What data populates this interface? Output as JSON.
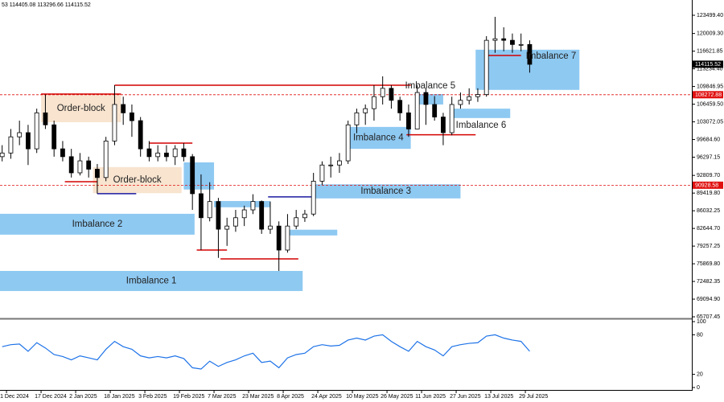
{
  "chart_data": [
    {
      "type": "candlestick",
      "info": "53 114405.08 113296.66 114115.52",
      "xlim": [
        "28 Nov 2024",
        "14 Oct 2025"
      ],
      "ylim": [
        65404,
        126427
      ],
      "yticks": [
        {
          "value": 123499.4,
          "label": "123499.40"
        },
        {
          "value": 120009.3,
          "label": "120009.30"
        },
        {
          "value": 116621.85,
          "label": "116621.85"
        },
        {
          "value": 113234.4,
          "label": "113234.40"
        },
        {
          "value": 109846.95,
          "label": "109846.95"
        },
        {
          "value": 106459.5,
          "label": "106459.50"
        },
        {
          "value": 103072.05,
          "label": "103072.05"
        },
        {
          "value": 99684.6,
          "label": "99684.60"
        },
        {
          "value": 96297.15,
          "label": "96297.15"
        },
        {
          "value": 92809.7,
          "label": "92809.70"
        },
        {
          "value": 89419.8,
          "label": "89419.80"
        },
        {
          "value": 86032.25,
          "label": "86032.25"
        },
        {
          "value": 82644.7,
          "label": "82644.70"
        },
        {
          "value": 79257.25,
          "label": "79257.25"
        },
        {
          "value": 75869.8,
          "label": "75869.80"
        },
        {
          "value": 72482.35,
          "label": "72482.35"
        },
        {
          "value": 69094.9,
          "label": "69094.90"
        },
        {
          "value": 65707.45,
          "label": "65707.45"
        }
      ],
      "xticks": [
        "1 Dec 2024",
        "17 Dec 2024",
        "2 Jan 2025",
        "18 Jan 2025",
        "3 Feb 2025",
        "19 Feb 2025",
        "7 Mar 2025",
        "23 Mar 2025",
        "8 Apr 2025",
        "24 Apr 2025",
        "10 May 2025",
        "26 May 2025",
        "11 Jun 2025",
        "27 Jun 2025",
        "13 Jul 2025",
        "29 Jul 2025"
      ],
      "x": [
        "29 Nov 2024",
        "3 Dec 2024",
        "7 Dec 2024",
        "11 Dec 2024",
        "15 Dec 2024",
        "19 Dec 2024",
        "23 Dec 2024",
        "27 Dec 2024",
        "31 Dec 2024",
        "4 Jan 2025",
        "8 Jan 2025",
        "12 Jan 2025",
        "16 Jan 2025",
        "20 Jan 2025",
        "24 Jan 2025",
        "28 Jan 2025",
        "1 Feb 2025",
        "5 Feb 2025",
        "9 Feb 2025",
        "13 Feb 2025",
        "17 Feb 2025",
        "21 Feb 2025",
        "25 Feb 2025",
        "1 Mar 2025",
        "5 Mar 2025",
        "9 Mar 2025",
        "13 Mar 2025",
        "17 Mar 2025",
        "21 Mar 2025",
        "25 Mar 2025",
        "29 Mar 2025",
        "2 Apr 2025",
        "6 Apr 2025",
        "10 Apr 2025",
        "14 Apr 2025",
        "18 Apr 2025",
        "22 Apr 2025",
        "26 Apr 2025",
        "30 Apr 2025",
        "4 May 2025",
        "8 May 2025",
        "12 May 2025",
        "16 May 2025",
        "20 May 2025",
        "24 May 2025",
        "28 May 2025",
        "1 Jun 2025",
        "5 Jun 2025",
        "9 Jun 2025",
        "13 Jun 2025",
        "17 Jun 2025",
        "21 Jun 2025",
        "25 Jun 2025",
        "29 Jun 2025",
        "3 Jul 2025",
        "7 Jul 2025",
        "11 Jul 2025",
        "15 Jul 2025",
        "19 Jul 2025",
        "23 Jul 2025",
        "27 Jul 2025",
        "31 Jul 2025"
      ],
      "open": [
        96400,
        97100,
        100200,
        101000,
        97900,
        104800,
        102500,
        97900,
        96400,
        93300,
        95600,
        94000,
        92400,
        99400,
        106400,
        104800,
        103300,
        97900,
        96400,
        97100,
        96400,
        97900,
        96400,
        89300,
        84700,
        87800,
        82500,
        83100,
        84700,
        86200,
        87800,
        82500,
        83100,
        78500,
        83100,
        84700,
        85400,
        91700,
        94800,
        94800,
        95600,
        102500,
        104800,
        105600,
        107900,
        109500,
        107200,
        104800,
        101700,
        108700,
        106400,
        104000,
        101000,
        106400,
        107200,
        107900,
        108300,
        118700,
        119000,
        118700,
        117900,
        117900
      ],
      "high": [
        98600,
        101700,
        103300,
        102500,
        105600,
        108300,
        103300,
        99400,
        97900,
        97100,
        96400,
        95000,
        100200,
        110100,
        107900,
        106400,
        104000,
        99400,
        98600,
        98600,
        98600,
        99000,
        96900,
        93000,
        91500,
        88500,
        84700,
        86200,
        87000,
        89200,
        88000,
        87800,
        84000,
        85400,
        86200,
        86200,
        93300,
        95500,
        96400,
        97100,
        103300,
        105600,
        106400,
        110100,
        111800,
        110100,
        107900,
        106400,
        110100,
        109500,
        108000,
        104800,
        107900,
        108700,
        109500,
        109500,
        119500,
        123200,
        121200,
        120000,
        120000,
        118700
      ],
      "low": [
        95500,
        96000,
        98600,
        94800,
        97100,
        101700,
        96400,
        95500,
        92400,
        92800,
        92400,
        89300,
        91700,
        98600,
        102500,
        100200,
        96400,
        95500,
        95500,
        95500,
        94800,
        95500,
        86200,
        78500,
        84000,
        77000,
        79300,
        82000,
        83100,
        85400,
        81600,
        81600,
        74500,
        78000,
        82500,
        83900,
        85000,
        91000,
        92400,
        93300,
        95000,
        100900,
        102500,
        103300,
        106400,
        105600,
        103300,
        100200,
        101700,
        102500,
        103300,
        98600,
        100500,
        105600,
        106400,
        106900,
        107900,
        116300,
        116600,
        116300,
        116600,
        112500
      ],
      "close": [
        97100,
        100200,
        101000,
        97900,
        104800,
        102500,
        97900,
        96400,
        93300,
        95600,
        94000,
        92400,
        99400,
        106400,
        104800,
        103300,
        97900,
        96400,
        97100,
        96400,
        97900,
        96400,
        89300,
        84700,
        87800,
        82500,
        83100,
        84700,
        86200,
        87800,
        82500,
        83100,
        78500,
        83100,
        84700,
        85400,
        91700,
        94800,
        94800,
        95600,
        102500,
        104800,
        105600,
        107900,
        109500,
        107200,
        104800,
        101700,
        108700,
        106400,
        104000,
        101000,
        106400,
        107200,
        107900,
        108300,
        118700,
        119000,
        118700,
        117900,
        117900,
        114100
      ],
      "candle_color": "#000000",
      "zones": [
        {
          "label": "Order-block",
          "start": "17 Dec 2024",
          "end": "23 Jan 2025",
          "top": 108250,
          "bottom": 103000,
          "color": "#f8e4cf",
          "label_pos": "center"
        },
        {
          "label": "Order-block",
          "start": "10 Jan 2025",
          "end": "20 Feb 2025",
          "top": 94400,
          "bottom": 89400,
          "color": "#f8e4cf",
          "label_pos": "center"
        },
        {
          "label": "Imbalance 2",
          "start": "28 Nov 2024",
          "end": "26 Feb 2025",
          "top": 85450,
          "bottom": 81450,
          "color": "#8ec9f2",
          "label_pos": "center"
        },
        {
          "label": "Imbalance 1",
          "start": "28 Nov 2024",
          "end": "17 Apr 2025",
          "top": 74500,
          "bottom": 70650,
          "color": "#8ec9f2",
          "label_pos": "center"
        },
        {
          "label": "Imbalance 3",
          "start": "21 Apr 2025",
          "end": "29 Jun 2025",
          "top": 91100,
          "bottom": 88400,
          "color": "#8ec9f2",
          "label_pos": "center"
        },
        {
          "start": "21 Feb 2025",
          "end": "7 Mar 2025",
          "top": 95300,
          "bottom": 90100,
          "color": "#8ec9f2"
        },
        {
          "start": "7 Mar 2025",
          "end": "2 Apr 2025",
          "top": 87900,
          "bottom": 86700,
          "color": "#8ec9f2"
        },
        {
          "start": "10 Apr 2025",
          "end": "3 May 2025",
          "top": 82400,
          "bottom": 81300,
          "color": "#8ec9f2"
        },
        {
          "label": "Imbalance 4",
          "start": "7 May 2025",
          "end": "6 Jun 2025",
          "top": 102100,
          "bottom": 97900,
          "color": "#8ec9f2",
          "label_pos": "center"
        },
        {
          "label": "Imbalance 5",
          "start": "9 Jun 2025",
          "end": "21 Jun 2025",
          "top": 108400,
          "bottom": 106400,
          "color": "#8ec9f2",
          "label_pos": "above"
        },
        {
          "label": "Imbalance 6",
          "start": "25 Jun 2025",
          "end": "22 Jul 2025",
          "top": 105600,
          "bottom": 103800,
          "color": "#8ec9f2",
          "label_pos": "below"
        },
        {
          "label": "Imbalance 7",
          "start": "6 Jul 2025",
          "end": "23 Aug 2025",
          "top": 116900,
          "bottom": 109200,
          "color": "#8ec9f2",
          "label_pos": "top-right"
        }
      ],
      "lines": [
        {
          "start": "20 Jan 2025",
          "end": "6 Jun 2025",
          "price": 110100,
          "color": "#d40000"
        },
        {
          "start": "17 Dec 2024",
          "end": "23 Jan 2025",
          "price": 108400,
          "color": "#d40000"
        },
        {
          "start": "5 Feb 2025",
          "end": "25 Feb 2025",
          "price": 99000,
          "color": "#d40000"
        },
        {
          "start": "28 Dec 2024",
          "end": "12 Jan 2025",
          "price": 91600,
          "color": "#d40000"
        },
        {
          "start": "12 Jan 2025",
          "end": "30 Jan 2025",
          "price": 89300,
          "color": "#1a1aa0"
        },
        {
          "start": "27 Feb 2025",
          "end": "13 Mar 2025",
          "price": 78500,
          "color": "#d40000"
        },
        {
          "start": "10 Mar 2025",
          "end": "15 Apr 2025",
          "price": 76800,
          "color": "#d40000"
        },
        {
          "start": "1 Apr 2025",
          "end": "22 Apr 2025",
          "price": 88700,
          "color": "#1a1aa0"
        },
        {
          "start": "4 Jun 2025",
          "end": "6 Jul 2025",
          "price": 100600,
          "color": "#d40000"
        },
        {
          "start": "11 Jul 2025",
          "end": "27 Jul 2025",
          "price": 115800,
          "color": "#d40000"
        }
      ],
      "price_lines": [
        {
          "price": 114115.52,
          "color": "#000000",
          "style": "none"
        },
        {
          "price": 108272.88,
          "color": "#e01010",
          "style": "dashed"
        },
        {
          "price": 90928.58,
          "color": "#e01010",
          "style": "dashed"
        }
      ]
    },
    {
      "type": "line",
      "ylim": [
        -3.7,
        103.7
      ],
      "yticks": [
        100,
        80,
        20,
        0
      ],
      "color": "#1e73e8",
      "values": [
        62,
        65,
        66,
        55,
        68,
        60,
        50,
        47,
        42,
        48,
        45,
        42,
        58,
        70,
        62,
        58,
        48,
        45,
        47,
        45,
        48,
        44,
        30,
        28,
        40,
        32,
        38,
        42,
        48,
        52,
        38,
        40,
        30,
        45,
        50,
        52,
        62,
        65,
        63,
        64,
        72,
        75,
        72,
        78,
        80,
        70,
        62,
        55,
        70,
        62,
        57,
        48,
        62,
        65,
        67,
        68,
        78,
        80,
        75,
        72,
        70,
        55
      ]
    }
  ]
}
